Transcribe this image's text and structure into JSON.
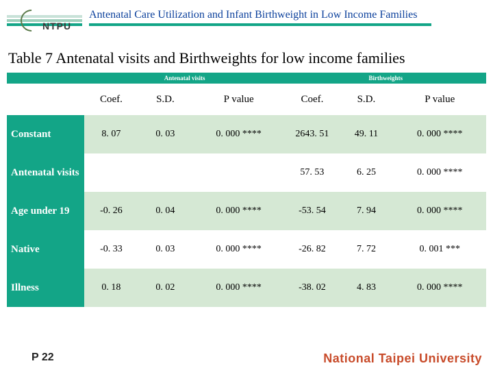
{
  "colors": {
    "accent": "#13a587",
    "title_fg": "#0a3f9b",
    "stripe1": "#c8e2d8",
    "stripe2": "#9ecfbc",
    "logo_fg": "#3a3a3a",
    "uni_fg": "#c84b2a",
    "row_alt_bg": "#d5e8d4"
  },
  "header": {
    "logo_text": "NTPU",
    "title": "Antenatal Care Utilization and Infant Birthweight in Low Income Families"
  },
  "caption": "Table 7  Antenatal visits and Birthweights for low income families",
  "table": {
    "section_headers": [
      "Antenatal visits",
      "Birthweights"
    ],
    "columns": [
      "",
      "Coef.",
      "S.D.",
      "P value",
      "Coef.",
      "S.D.",
      "P value"
    ],
    "rows": [
      {
        "label": "Constant",
        "cells": [
          "8. 07",
          "0. 03",
          "0. 000 ****",
          "2643. 51",
          "49. 11",
          "0. 000 ****"
        ]
      },
      {
        "label": "Antenatal visits",
        "cells": [
          "",
          "",
          "",
          "57. 53",
          "6. 25",
          "0. 000 ****"
        ]
      },
      {
        "label": "Age under 19",
        "cells": [
          "-0. 26",
          "0. 04",
          "0. 000 ****",
          "-53. 54",
          "7. 94",
          "0. 000 ****"
        ]
      },
      {
        "label": "Native",
        "cells": [
          "-0. 33",
          "0. 03",
          "0. 000 ****",
          "-26. 82",
          "7. 72",
          "0. 001 ***"
        ]
      },
      {
        "label": "Illness",
        "cells": [
          "0. 18",
          "0. 02",
          "0. 000 ****",
          "-38. 02",
          "4. 83",
          "0. 000 ****"
        ]
      }
    ]
  },
  "footer": {
    "page": "P 22",
    "university": "National Taipei University"
  }
}
